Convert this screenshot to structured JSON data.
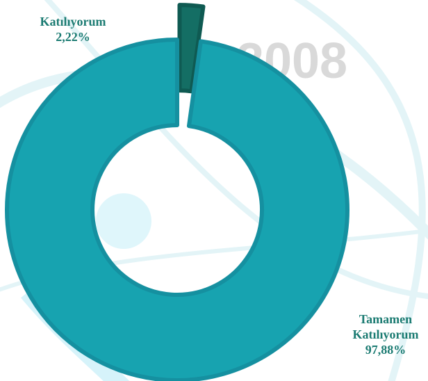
{
  "chart_data": {
    "type": "donut",
    "watermark": "2008",
    "categories": [
      "Katılıyorum",
      "Tamamen Katılıyorum"
    ],
    "values": [
      2.22,
      97.88
    ],
    "value_labels": [
      "2,22%",
      "97,88%"
    ],
    "colors": [
      "#146e64",
      "#17a3b0"
    ]
  }
}
